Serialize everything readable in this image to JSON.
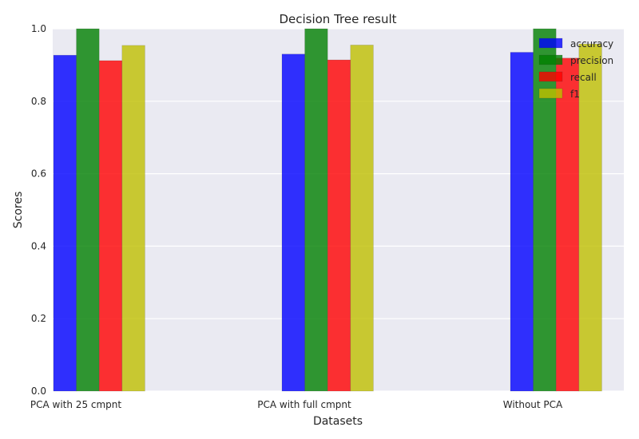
{
  "chart_data": {
    "type": "bar",
    "title": "Decision Tree result",
    "xlabel": "Datasets",
    "ylabel": "Scores",
    "categories": [
      "PCA with 25 cmpnt",
      "PCA with full cmpnt",
      "Without PCA"
    ],
    "ylim": [
      0,
      1.0
    ],
    "yticks": [
      "0.0",
      "0.2",
      "0.4",
      "0.6",
      "0.8",
      "1.0"
    ],
    "grid": true,
    "legend_position": "top-right",
    "series": [
      {
        "name": "accuracy",
        "color": "#0000ff",
        "values": [
          0.927,
          0.93,
          0.935
        ]
      },
      {
        "name": "precision",
        "color": "#008000",
        "values": [
          1.0,
          1.0,
          1.0
        ]
      },
      {
        "name": "recall",
        "color": "#ff0000",
        "values": [
          0.912,
          0.914,
          0.919
        ]
      },
      {
        "name": "f1",
        "color": "#bfbf00",
        "values": [
          0.954,
          0.955,
          0.958
        ]
      }
    ]
  }
}
